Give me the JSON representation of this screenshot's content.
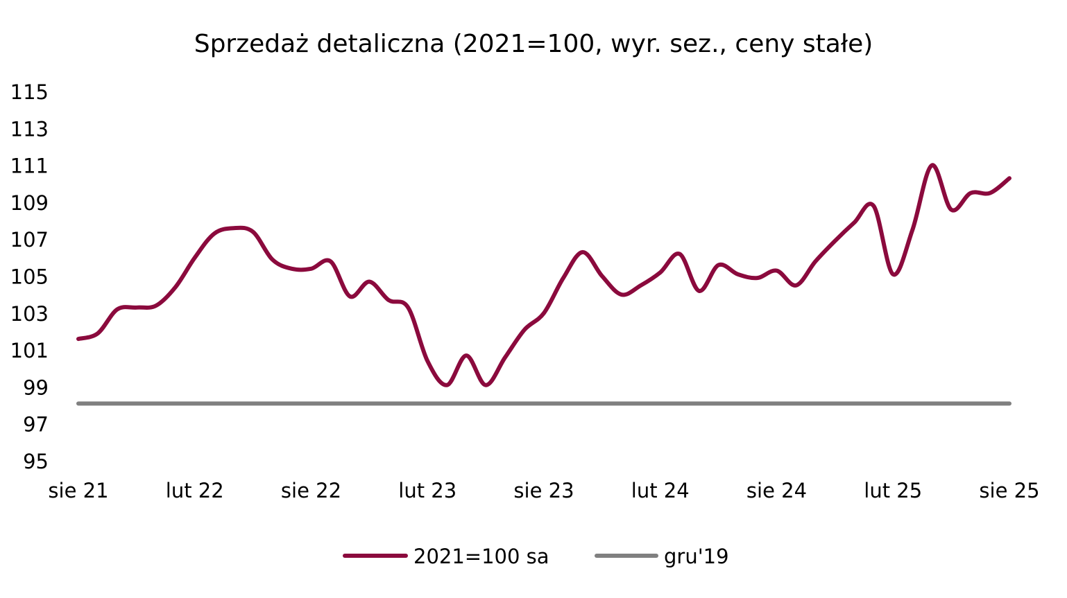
{
  "chart_data": {
    "type": "line",
    "title": "Sprzedaż detaliczna (2021=100, wyr. sez., ceny stałe)",
    "xlabel": "",
    "ylabel": "",
    "ylim": [
      95,
      115
    ],
    "y_ticks": [
      95,
      97,
      99,
      101,
      103,
      105,
      107,
      109,
      111,
      113,
      115
    ],
    "x_tick_labels": [
      "sie 21",
      "lut 22",
      "sie 22",
      "lut 23",
      "sie 23",
      "lut 24",
      "sie 24",
      "lut 25",
      "sie 25"
    ],
    "x_tick_interval_months": 6,
    "x_start": "sie 21",
    "x_end": "sie 25",
    "grid": false,
    "legend_position": "bottom",
    "series": [
      {
        "name": "2021=100 sa",
        "color": "#8B0A3D",
        "values": [
          101.6,
          101.9,
          103.2,
          103.3,
          103.4,
          104.4,
          106.0,
          107.3,
          107.6,
          107.4,
          105.9,
          105.4,
          105.4,
          105.8,
          103.9,
          104.7,
          103.7,
          103.3,
          100.4,
          99.1,
          100.7,
          99.1,
          100.6,
          102.1,
          103.0,
          104.9,
          106.3,
          105.0,
          104.0,
          104.5,
          105.2,
          106.2,
          104.2,
          105.6,
          105.1,
          104.9,
          105.3,
          104.5,
          105.8,
          106.9,
          107.9,
          108.8,
          105.1,
          107.5,
          111.0,
          108.6,
          109.5,
          109.5,
          110.3
        ]
      },
      {
        "name": "gru'19",
        "color": "#808080",
        "values": [
          98.1,
          98.1,
          98.1,
          98.1,
          98.1,
          98.1,
          98.1,
          98.1,
          98.1,
          98.1,
          98.1,
          98.1,
          98.1,
          98.1,
          98.1,
          98.1,
          98.1,
          98.1,
          98.1,
          98.1,
          98.1,
          98.1,
          98.1,
          98.1,
          98.1,
          98.1,
          98.1,
          98.1,
          98.1,
          98.1,
          98.1,
          98.1,
          98.1,
          98.1,
          98.1,
          98.1,
          98.1,
          98.1,
          98.1,
          98.1,
          98.1,
          98.1,
          98.1,
          98.1,
          98.1,
          98.1,
          98.1,
          98.1,
          98.1
        ]
      }
    ]
  }
}
